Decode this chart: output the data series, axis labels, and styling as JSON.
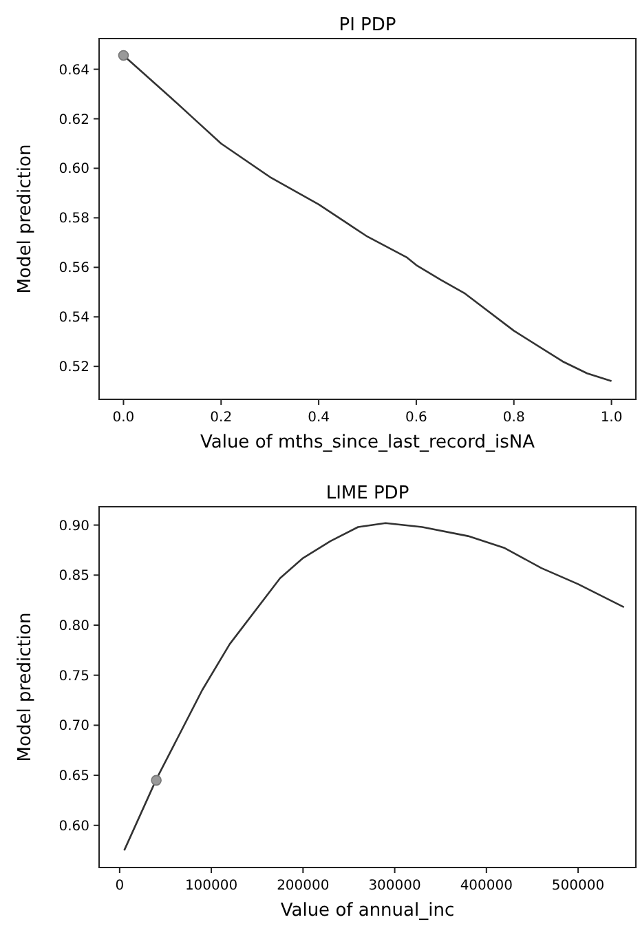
{
  "chart_data": [
    {
      "type": "line",
      "title": "PI PDP",
      "xlabel": "Value of mths_since_last_record_isNA",
      "ylabel": "Model prediction",
      "xlim": [
        -0.05,
        1.05
      ],
      "ylim": [
        0.5067,
        0.6524
      ],
      "xticks": [
        {
          "value": 0,
          "label": "0.0"
        },
        0.2,
        0.4,
        0.6,
        0.8,
        {
          "value": 1,
          "label": "1.0"
        }
      ],
      "yticks": [
        0.52,
        0.54,
        0.56,
        0.58,
        {
          "value": 0.6,
          "label": "0.60"
        },
        0.62,
        0.64
      ],
      "series": [
        {
          "color": "#333333",
          "x": [
            0,
            0.1,
            0.15,
            0.2,
            0.3,
            0.4,
            0.5,
            0.58,
            0.6,
            0.65,
            0.7,
            0.8,
            0.9,
            0.95,
            1.0
          ],
          "values": [
            0.6456,
            0.628,
            0.619,
            0.61,
            0.5965,
            0.5854,
            0.5724,
            0.5641,
            0.5609,
            0.555,
            0.5494,
            0.5344,
            0.522,
            0.5172,
            0.5141
          ]
        },
        {
          "type": "scatter",
          "marker": "circle",
          "color": "#999999",
          "x": [
            0
          ],
          "values": [
            0.6456
          ]
        }
      ]
    },
    {
      "type": "line",
      "title": "LIME PDP",
      "xlabel": "Value of annual_inc",
      "ylabel": "Model prediction",
      "xlim": [
        -22400,
        563000
      ],
      "ylim": [
        0.5579,
        0.9183
      ],
      "xticks": [
        0,
        100000,
        200000,
        300000,
        400000,
        500000
      ],
      "yticks": [
        {
          "value": 0.6,
          "label": "0.60"
        },
        0.65,
        {
          "value": 0.7,
          "label": "0.70"
        },
        0.75,
        {
          "value": 0.8,
          "label": "0.80"
        },
        0.85,
        {
          "value": 0.9,
          "label": "0.90"
        }
      ],
      "series": [
        {
          "color": "#333333",
          "x": [
            5000,
            40000,
            90000,
            120000,
            175000,
            200000,
            230000,
            260000,
            290000,
            330000,
            380000,
            420000,
            460000,
            500000,
            550000
          ],
          "values": [
            0.575,
            0.646,
            0.735,
            0.781,
            0.847,
            0.867,
            0.884,
            0.898,
            0.902,
            0.898,
            0.889,
            0.877,
            0.857,
            0.841,
            0.818
          ]
        },
        {
          "type": "scatter",
          "marker": "circle",
          "color": "#999999",
          "x": [
            40000
          ],
          "values": [
            0.645
          ]
        }
      ]
    }
  ]
}
